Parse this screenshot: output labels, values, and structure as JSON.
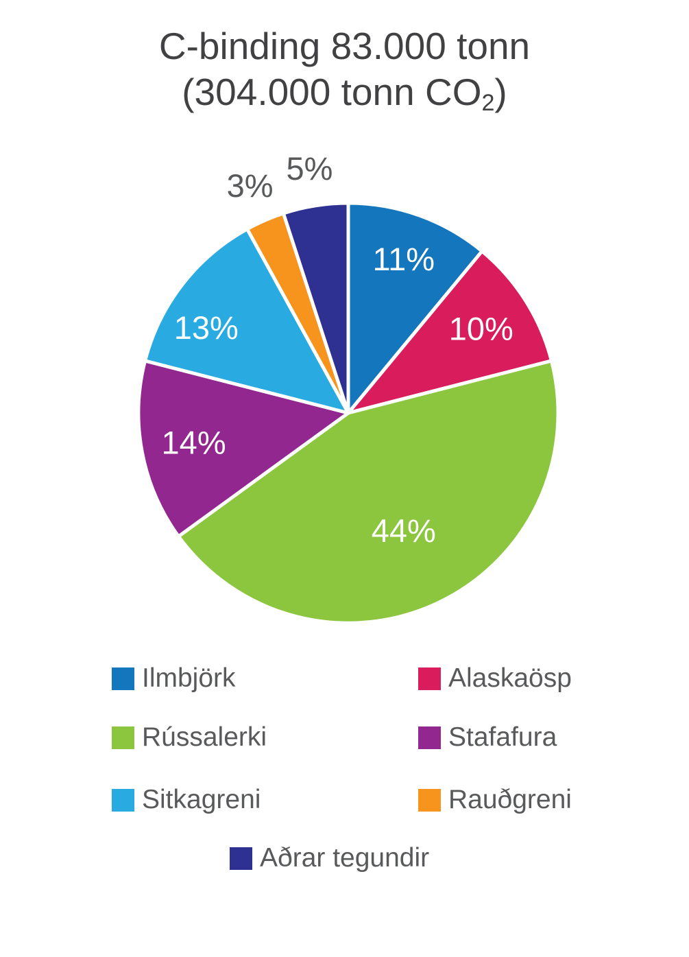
{
  "figure": {
    "background": "#FFFFFF",
    "title_color": "#414042",
    "legend_text_color": "#58595B"
  },
  "titleblock": {
    "line1": "C-binding 83.000 tonn",
    "line2_pre": "(304.000 tonn CO",
    "line2_sub": "2",
    "line2_post": ")"
  },
  "chart_data": {
    "type": "pie",
    "title": "C-binding 83.000 tonn",
    "subtitle": "(304.000 tonn CO₂)",
    "total_percent": 100,
    "start_angle_deg": 0,
    "direction": "clockwise",
    "slice_gap_color": "#FFFFFF",
    "inside_label_color": "#FFFFFF",
    "outside_label_color": "#58595B",
    "legend_position": "bottom",
    "slices": [
      {
        "id": "ilmbjork",
        "label": "Ilmbjörk",
        "value": 11,
        "pct_label": "11%",
        "color": "#1476BD",
        "label_pos": "inside",
        "label_r": 0.78
      },
      {
        "id": "alaskaosp",
        "label": "Alaskaösp",
        "value": 10,
        "pct_label": "10%",
        "color": "#D91C5C",
        "label_pos": "inside",
        "label_r": 0.75
      },
      {
        "id": "russalerki",
        "label": "Rússalerki",
        "value": 44,
        "pct_label": "44%",
        "color": "#8CC63F",
        "label_pos": "inside",
        "label_r": 0.62
      },
      {
        "id": "stafafura",
        "label": "Stafafura",
        "value": 14,
        "pct_label": "14%",
        "color": "#92278F",
        "label_pos": "inside",
        "label_r": 0.75
      },
      {
        "id": "sitkagreni",
        "label": "Sitkagreni",
        "value": 13,
        "pct_label": "13%",
        "color": "#29ABE2",
        "label_pos": "inside",
        "label_r": 0.79,
        "label_angle": 301
      },
      {
        "id": "raudgreni",
        "label": "Rauðgreni",
        "value": 3,
        "pct_label": "3%",
        "color": "#F7941E",
        "label_pos": "outside",
        "label_r": 1.18
      },
      {
        "id": "adrar-tegundir",
        "label": "Aðrar tegundir",
        "value": 5,
        "pct_label": "5%",
        "color": "#2E3192",
        "label_pos": "outside",
        "label_r": 1.18
      }
    ]
  }
}
